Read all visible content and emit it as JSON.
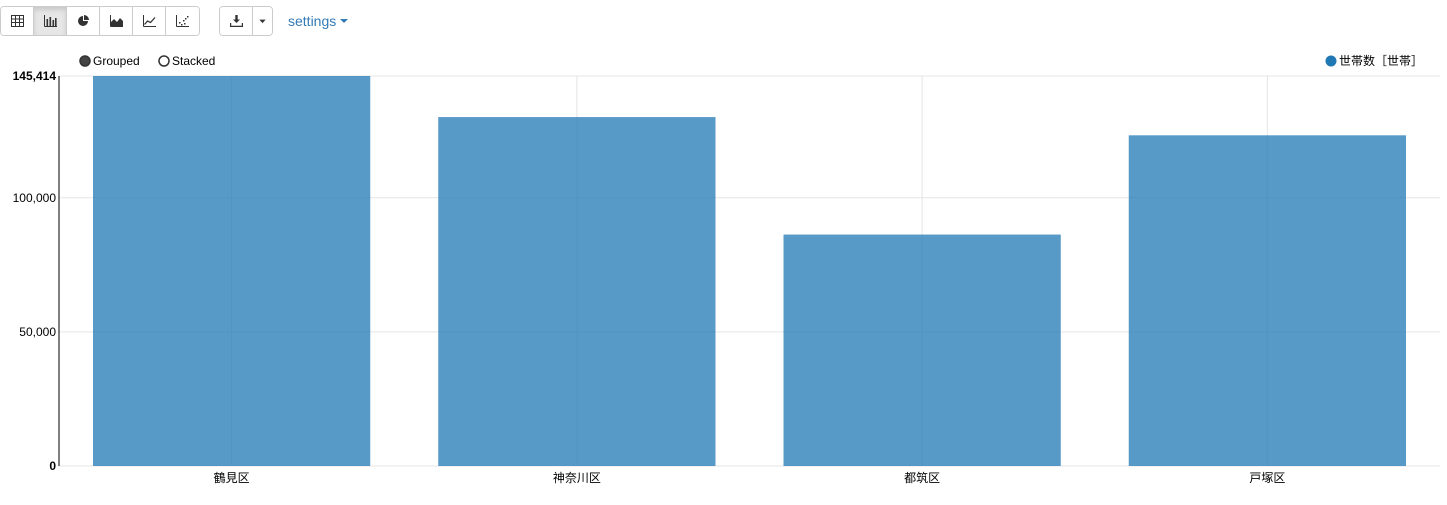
{
  "toolbar": {
    "view_buttons": [
      {
        "icon": "table-icon",
        "active": false
      },
      {
        "icon": "bar-chart-icon",
        "active": true
      },
      {
        "icon": "pie-chart-icon",
        "active": false
      },
      {
        "icon": "area-chart-icon",
        "active": false
      },
      {
        "icon": "line-chart-icon",
        "active": false
      },
      {
        "icon": "scatter-chart-icon",
        "active": false
      }
    ],
    "download_icon": "download-icon",
    "dropdown_icon": "caret-down-icon",
    "settings_label": "settings"
  },
  "controls": {
    "grouped_label": "Grouped",
    "stacked_label": "Stacked",
    "selected": "Grouped"
  },
  "colors": {
    "bar": "#1f77b4",
    "accent": "#337ab7"
  },
  "chart_data": {
    "type": "bar",
    "categories": [
      "鶴見区",
      "神奈川区",
      "都筑区",
      "戸塚区"
    ],
    "series": [
      {
        "name": "世帯数［世帯］",
        "values": [
          145414,
          130100,
          86300,
          123300
        ]
      }
    ],
    "ylim": [
      0,
      145414
    ],
    "yticks": [
      0,
      50000,
      100000,
      145414
    ],
    "ytick_labels": [
      "0",
      "50,000",
      "100,000",
      "145,414"
    ],
    "grid": true,
    "legend_position": "top-right",
    "title": "",
    "xlabel": "",
    "ylabel": ""
  }
}
